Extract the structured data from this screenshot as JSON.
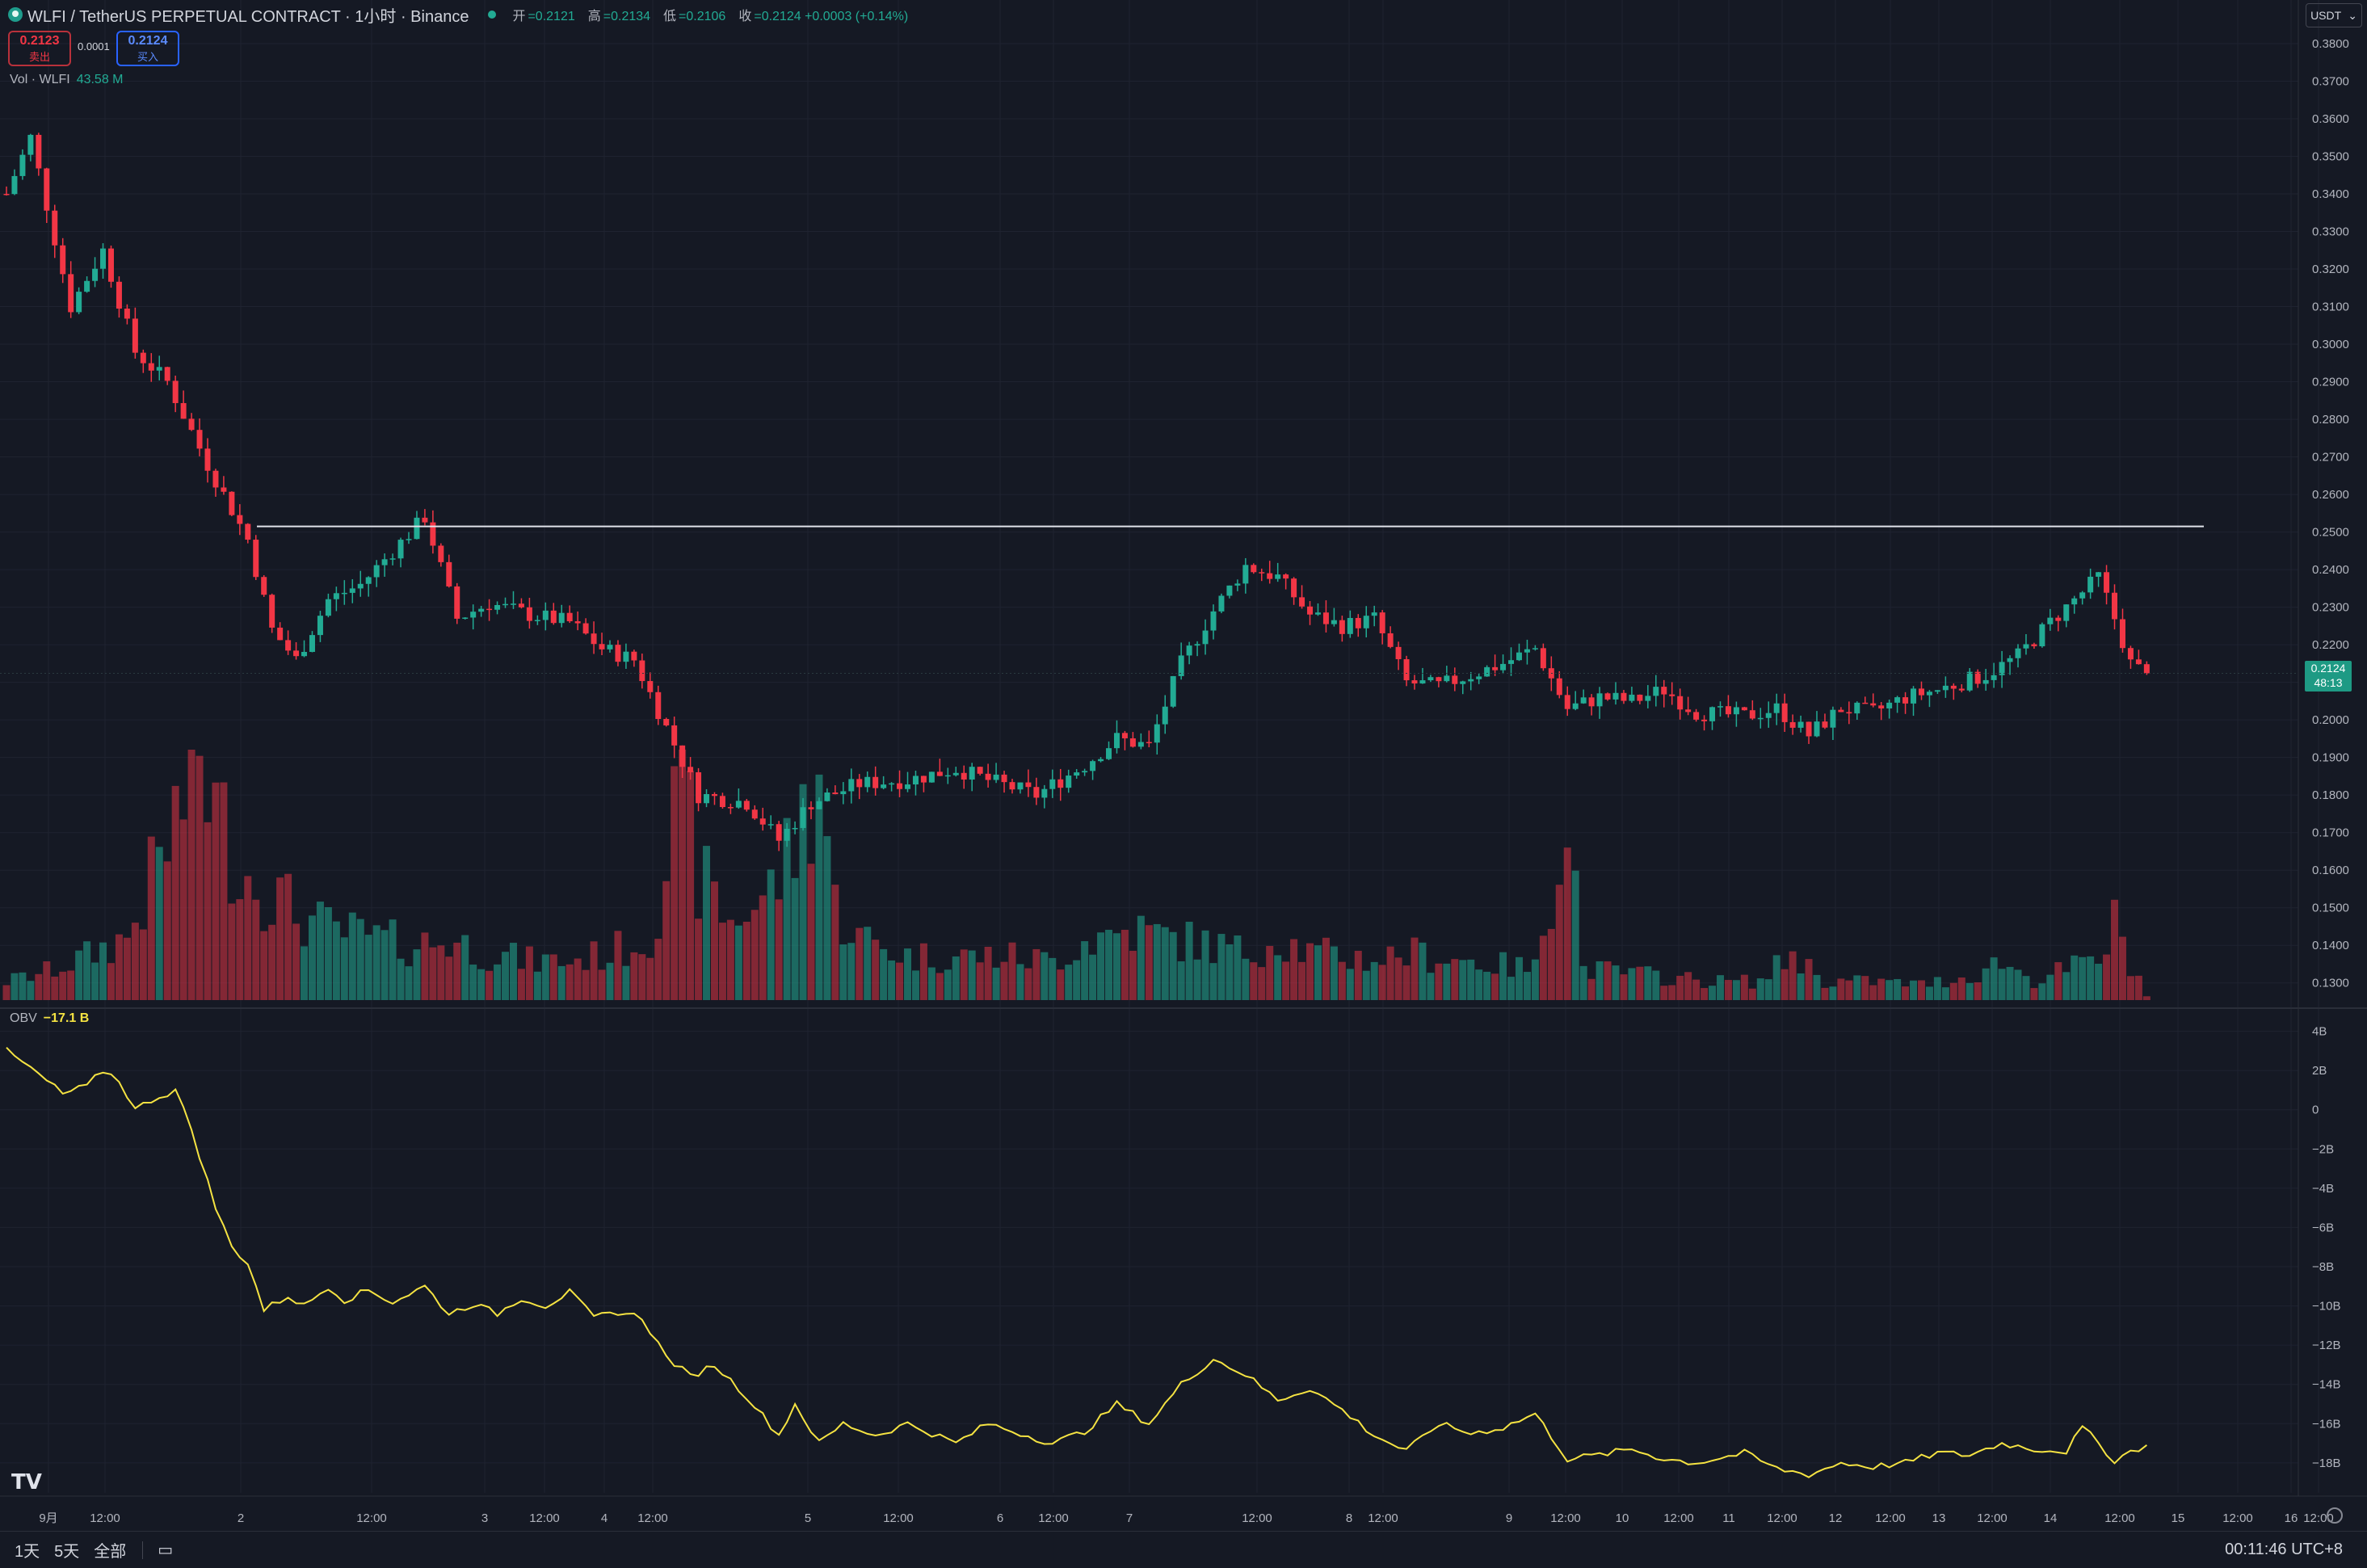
{
  "header": {
    "symbol_title": "WLFI / TetherUS PERPETUAL CONTRACT · 1小时 · Binance",
    "ohlc": [
      {
        "label": "开",
        "value": "=0.2121"
      },
      {
        "label": "高",
        "value": "=0.2134"
      },
      {
        "label": "低",
        "value": "=0.2106"
      },
      {
        "label": "收",
        "value": "=0.2124 +0.0003 (+0.14%)"
      }
    ],
    "sell_price": "0.2123",
    "sell_label": "卖出",
    "spread": "0.0001",
    "buy_price": "0.2124",
    "buy_label": "买入",
    "currency": "USDT"
  },
  "volume_legend": {
    "label": "Vol · WLFI",
    "value": "43.58 M"
  },
  "obv_legend": {
    "label": "OBV",
    "value": "−17.1 B"
  },
  "last_price": {
    "price": "0.2124",
    "countdown": "48:13"
  },
  "bottom_bar": {
    "range_1d": "1天",
    "range_5d": "5天",
    "range_all": "全部",
    "clock": "00:11:46 UTC+8"
  },
  "colors": {
    "up": "#22ab94",
    "down": "#f23645",
    "obv": "#f5e342",
    "bg": "#151924",
    "grid": "#1f2330"
  },
  "chart_data": [
    {
      "type": "candlestick",
      "title": "WLFI / TetherUS PERPETUAL CONTRACT · 1小时 · Binance",
      "ylim": [
        0.125,
        0.383
      ],
      "y_ticks": [
        "0.3800",
        "0.3700",
        "0.3600",
        "0.3500",
        "0.3400",
        "0.3300",
        "0.3200",
        "0.3100",
        "0.3000",
        "0.2900",
        "0.2800",
        "0.2700",
        "0.2600",
        "0.2500",
        "0.2400",
        "0.2300",
        "0.2200",
        "0.2100",
        "0.2000",
        "0.1900",
        "0.1800",
        "0.1700",
        "0.1600",
        "0.1500",
        "0.1400",
        "0.1300"
      ],
      "x_ticks": [
        "9月",
        "12:00",
        "2",
        "12:00",
        "3",
        "12:00",
        "4",
        "12:00",
        "5",
        "12:00",
        "6",
        "12:00",
        "7",
        "12:00",
        "8",
        "12:00",
        "9",
        "12:00",
        "10",
        "12:00",
        "11",
        "12:00",
        "12",
        "12:00",
        "13",
        "12:00",
        "14",
        "12:00",
        "15",
        "12:00",
        "16",
        "12:00"
      ],
      "horizontal_line": 0.2515,
      "close_anchors": [
        [
          0,
          0.34
        ],
        [
          3,
          0.355
        ],
        [
          8,
          0.31
        ],
        [
          12,
          0.325
        ],
        [
          16,
          0.298
        ],
        [
          20,
          0.29
        ],
        [
          25,
          0.268
        ],
        [
          30,
          0.248
        ],
        [
          33,
          0.224
        ],
        [
          36,
          0.216
        ],
        [
          40,
          0.232
        ],
        [
          44,
          0.236
        ],
        [
          48,
          0.245
        ],
        [
          52,
          0.254
        ],
        [
          56,
          0.227
        ],
        [
          60,
          0.231
        ],
        [
          65,
          0.228
        ],
        [
          70,
          0.226
        ],
        [
          74,
          0.219
        ],
        [
          78,
          0.216
        ],
        [
          82,
          0.198
        ],
        [
          86,
          0.18
        ],
        [
          92,
          0.178
        ],
        [
          96,
          0.168
        ],
        [
          100,
          0.178
        ],
        [
          106,
          0.183
        ],
        [
          112,
          0.184
        ],
        [
          118,
          0.187
        ],
        [
          122,
          0.184
        ],
        [
          128,
          0.18
        ],
        [
          134,
          0.188
        ],
        [
          138,
          0.195
        ],
        [
          142,
          0.193
        ],
        [
          146,
          0.215
        ],
        [
          150,
          0.229
        ],
        [
          154,
          0.241
        ],
        [
          158,
          0.238
        ],
        [
          162,
          0.228
        ],
        [
          166,
          0.225
        ],
        [
          170,
          0.227
        ],
        [
          174,
          0.21
        ],
        [
          178,
          0.209
        ],
        [
          182,
          0.212
        ],
        [
          186,
          0.215
        ],
        [
          190,
          0.219
        ],
        [
          194,
          0.203
        ],
        [
          198,
          0.206
        ],
        [
          202,
          0.205
        ],
        [
          206,
          0.208
        ],
        [
          210,
          0.202
        ],
        [
          216,
          0.201
        ],
        [
          220,
          0.203
        ],
        [
          224,
          0.196
        ],
        [
          228,
          0.203
        ],
        [
          232,
          0.202
        ],
        [
          236,
          0.206
        ],
        [
          240,
          0.208
        ],
        [
          246,
          0.212
        ],
        [
          250,
          0.217
        ],
        [
          254,
          0.226
        ],
        [
          258,
          0.234
        ],
        [
          260,
          0.238
        ],
        [
          262,
          0.227
        ],
        [
          264,
          0.215
        ],
        [
          266,
          0.212
        ]
      ],
      "volume_anchors": [
        [
          0,
          12
        ],
        [
          5,
          18
        ],
        [
          10,
          28
        ],
        [
          15,
          40
        ],
        [
          20,
          100
        ],
        [
          24,
          160
        ],
        [
          26,
          120
        ],
        [
          30,
          80
        ],
        [
          33,
          70
        ],
        [
          36,
          55
        ],
        [
          40,
          45
        ],
        [
          45,
          40
        ],
        [
          50,
          35
        ],
        [
          55,
          38
        ],
        [
          60,
          30
        ],
        [
          65,
          25
        ],
        [
          70,
          25
        ],
        [
          75,
          30
        ],
        [
          80,
          40
        ],
        [
          84,
          140
        ],
        [
          86,
          80
        ],
        [
          90,
          50
        ],
        [
          95,
          70
        ],
        [
          98,
          100
        ],
        [
          101,
          150
        ],
        [
          103,
          60
        ],
        [
          106,
          40
        ],
        [
          112,
          28
        ],
        [
          118,
          28
        ],
        [
          124,
          28
        ],
        [
          130,
          25
        ],
        [
          134,
          38
        ],
        [
          140,
          45
        ],
        [
          144,
          40
        ],
        [
          150,
          35
        ],
        [
          154,
          30
        ],
        [
          158,
          40
        ],
        [
          162,
          30
        ],
        [
          166,
          28
        ],
        [
          170,
          26
        ],
        [
          174,
          30
        ],
        [
          178,
          28
        ],
        [
          182,
          25
        ],
        [
          186,
          22
        ],
        [
          190,
          20
        ],
        [
          194,
          130
        ],
        [
          196,
          20
        ],
        [
          200,
          18
        ],
        [
          206,
          15
        ],
        [
          212,
          12
        ],
        [
          218,
          12
        ],
        [
          222,
          30
        ],
        [
          226,
          12
        ],
        [
          232,
          12
        ],
        [
          238,
          10
        ],
        [
          244,
          15
        ],
        [
          248,
          25
        ],
        [
          252,
          12
        ],
        [
          256,
          20
        ],
        [
          260,
          25
        ],
        [
          262,
          48
        ],
        [
          264,
          25
        ],
        [
          266,
          3
        ]
      ],
      "volume_ylim": [
        0,
        160
      ],
      "last_close": 0.2124
    },
    {
      "type": "line",
      "series": [
        {
          "name": "OBV",
          "anchors": [
            [
              0,
              3.0
            ],
            [
              4,
              1.8
            ],
            [
              7,
              0.8
            ],
            [
              10,
              1.2
            ],
            [
              12,
              2.0
            ],
            [
              14,
              1.5
            ],
            [
              16,
              0.0
            ],
            [
              18,
              0.5
            ],
            [
              21,
              1.0
            ],
            [
              23,
              -1.0
            ],
            [
              26,
              -5.0
            ],
            [
              28,
              -7.0
            ],
            [
              30,
              -7.8
            ],
            [
              32,
              -10.2
            ],
            [
              35,
              -9.5
            ],
            [
              37,
              -10.0
            ],
            [
              40,
              -9.0
            ],
            [
              42,
              -9.7
            ],
            [
              45,
              -9.2
            ],
            [
              48,
              -9.8
            ],
            [
              52,
              -9.0
            ],
            [
              55,
              -10.4
            ],
            [
              58,
              -9.9
            ],
            [
              61,
              -10.4
            ],
            [
              64,
              -9.6
            ],
            [
              67,
              -10.0
            ],
            [
              70,
              -9.3
            ],
            [
              73,
              -10.6
            ],
            [
              76,
              -10.3
            ],
            [
              79,
              -10.6
            ],
            [
              82,
              -12.6
            ],
            [
              85,
              -13.6
            ],
            [
              88,
              -13.0
            ],
            [
              92,
              -14.6
            ],
            [
              96,
              -16.6
            ],
            [
              98,
              -15.0
            ],
            [
              101,
              -17.0
            ],
            [
              104,
              -16.0
            ],
            [
              108,
              -16.6
            ],
            [
              112,
              -16.0
            ],
            [
              118,
              -17.0
            ],
            [
              122,
              -16.0
            ],
            [
              126,
              -16.5
            ],
            [
              130,
              -17.0
            ],
            [
              134,
              -16.4
            ],
            [
              138,
              -15.0
            ],
            [
              142,
              -16.0
            ],
            [
              146,
              -14.0
            ],
            [
              150,
              -12.7
            ],
            [
              154,
              -13.5
            ],
            [
              158,
              -14.8
            ],
            [
              162,
              -14.2
            ],
            [
              166,
              -15.3
            ],
            [
              170,
              -16.6
            ],
            [
              174,
              -17.4
            ],
            [
              178,
              -16.0
            ],
            [
              182,
              -16.5
            ],
            [
              186,
              -16.2
            ],
            [
              190,
              -15.5
            ],
            [
              194,
              -17.8
            ],
            [
              198,
              -17.6
            ],
            [
              202,
              -17.3
            ],
            [
              206,
              -17.8
            ],
            [
              210,
              -18.0
            ],
            [
              216,
              -17.5
            ],
            [
              220,
              -18.3
            ],
            [
              224,
              -18.6
            ],
            [
              228,
              -18.0
            ],
            [
              232,
              -18.2
            ],
            [
              236,
              -18.0
            ],
            [
              240,
              -17.5
            ],
            [
              244,
              -17.6
            ],
            [
              248,
              -17.0
            ],
            [
              252,
              -17.3
            ],
            [
              256,
              -17.4
            ],
            [
              258,
              -16.2
            ],
            [
              260,
              -17.0
            ],
            [
              262,
              -17.9
            ],
            [
              264,
              -17.4
            ],
            [
              266,
              -17.1
            ]
          ]
        }
      ],
      "ylim": [
        -19.2,
        4.6
      ],
      "y_ticks": [
        "4B",
        "2B",
        "0",
        "−2B",
        "−4B",
        "−6B",
        "−8B",
        "−10B",
        "−12B",
        "−14B",
        "−16B",
        "−18B"
      ],
      "last_value": -17.1
    }
  ]
}
